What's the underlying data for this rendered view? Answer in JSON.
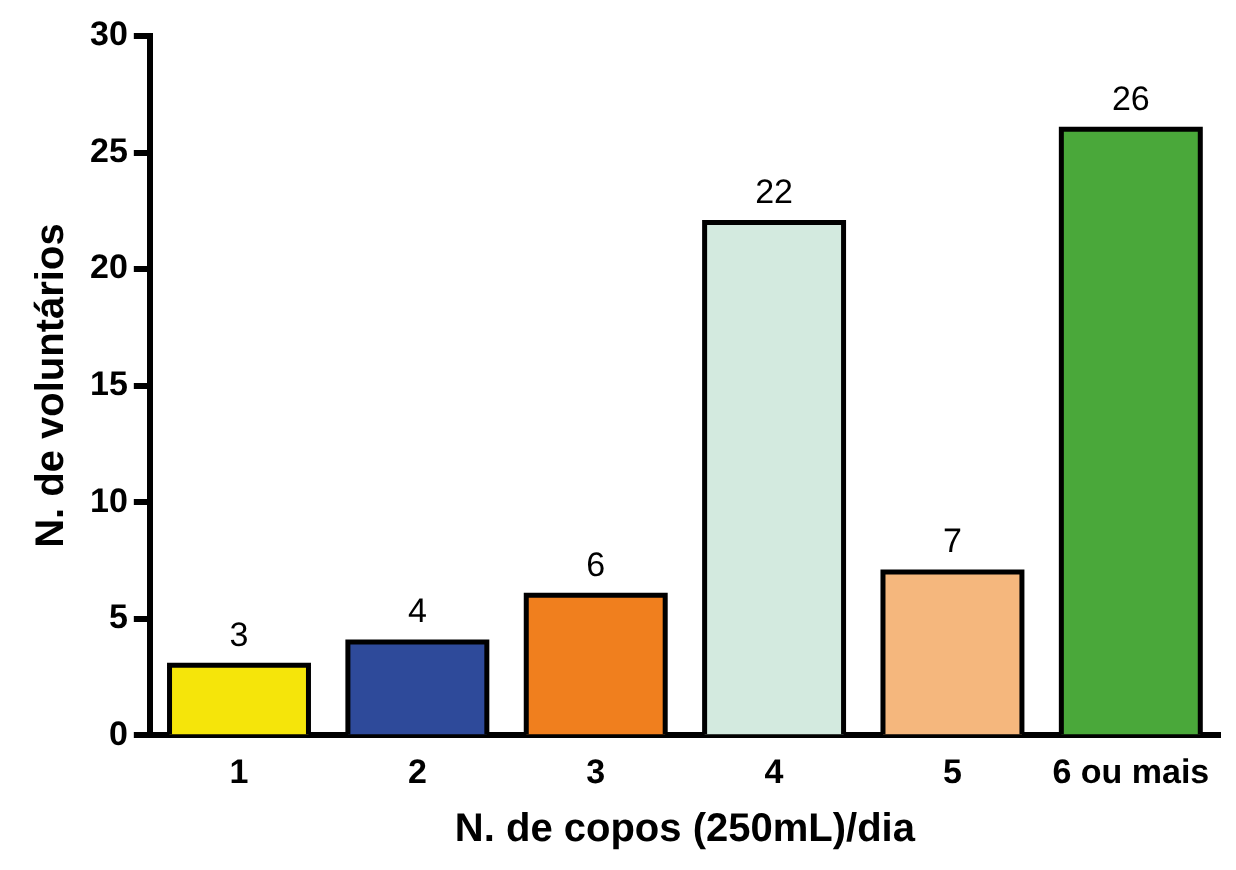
{
  "chart_data": {
    "type": "bar",
    "xlabel": "N. de copos (250mL)/dia",
    "ylabel": "N. de voluntários",
    "categories": [
      "1",
      "2",
      "3",
      "4",
      "5",
      "6 ou mais"
    ],
    "values": [
      3,
      4,
      6,
      22,
      7,
      26
    ],
    "colors": [
      "#f5e50a",
      "#2e4a9a",
      "#f07f1e",
      "#d3eadf",
      "#f5b77d",
      "#4aa83a"
    ],
    "ylim": [
      0,
      30
    ],
    "yticks": [
      0,
      5,
      10,
      15,
      20,
      25,
      30
    ],
    "grid": false,
    "legend": false,
    "data_labels": true
  }
}
